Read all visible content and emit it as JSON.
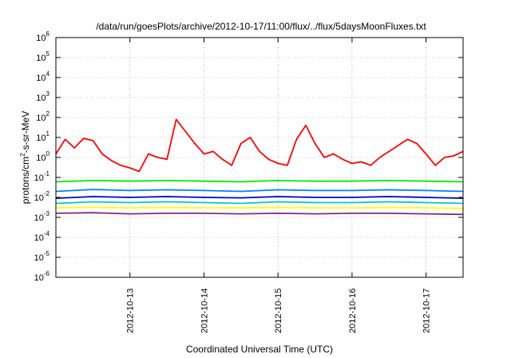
{
  "chart_data": {
    "type": "line",
    "title": "/data/run/goesPlots/archive/2012-10-17/11:00/flux/../flux/5daysMoonFluxes.txt",
    "xlabel": "Coordinated Universal Time (UTC)",
    "ylabel": {
      "base": "protons/cm",
      "sup": "2",
      "rest": "-s-sr-MeV"
    },
    "yscale": "log",
    "ylim": [
      1e-06,
      1000000.0
    ],
    "xlim": [
      "2012-10-12T00:00",
      "2012-10-17T12:00"
    ],
    "grid": true,
    "x_ticks": [
      "2012-10-13",
      "2012-10-14",
      "2012-10-15",
      "2012-10-16",
      "2012-10-17"
    ],
    "y_ticks": [
      {
        "base": "10",
        "exp": "-6"
      },
      {
        "base": "10",
        "exp": "-5"
      },
      {
        "base": "10",
        "exp": "-4"
      },
      {
        "base": "10",
        "exp": "-3"
      },
      {
        "base": "10",
        "exp": "-2"
      },
      {
        "base": "10",
        "exp": "-1"
      },
      {
        "base": "10",
        "exp": "0"
      },
      {
        "base": "10",
        "exp": "1"
      },
      {
        "base": "10",
        "exp": "2"
      },
      {
        "base": "10",
        "exp": "3"
      },
      {
        "base": "10",
        "exp": "4"
      },
      {
        "base": "10",
        "exp": "5"
      },
      {
        "base": "10",
        "exp": "6"
      }
    ],
    "series": [
      {
        "color": "#7f2a7f",
        "x": [
          "2012-10-12T00:00",
          "2012-10-12T12:00",
          "2012-10-13T00:00",
          "2012-10-13T12:00",
          "2012-10-14T00:00",
          "2012-10-14T12:00",
          "2012-10-15T00:00",
          "2012-10-15T12:00",
          "2012-10-16T00:00",
          "2012-10-16T12:00",
          "2012-10-17T00:00",
          "2012-10-17T12:00"
        ],
        "values": [
          0.0016,
          0.0017,
          0.0015,
          0.0016,
          0.0016,
          0.0015,
          0.0016,
          0.0015,
          0.0016,
          0.0016,
          0.0015,
          0.0014
        ]
      },
      {
        "color": "#ffff00",
        "x": [
          "2012-10-12T00:00",
          "2012-10-12T12:00",
          "2012-10-13T00:00",
          "2012-10-13T12:00",
          "2012-10-14T00:00",
          "2012-10-14T12:00",
          "2012-10-15T00:00",
          "2012-10-15T12:00",
          "2012-10-16T00:00",
          "2012-10-16T12:00",
          "2012-10-17T00:00",
          "2012-10-17T12:00"
        ],
        "values": [
          0.003,
          0.0032,
          0.003,
          0.0031,
          0.003,
          0.003,
          0.0031,
          0.003,
          0.003,
          0.0031,
          0.003,
          0.0028
        ]
      },
      {
        "color": "#00c8c8",
        "x": [
          "2012-10-12T00:00",
          "2012-10-12T12:00",
          "2012-10-13T00:00",
          "2012-10-13T12:00",
          "2012-10-14T00:00",
          "2012-10-14T12:00",
          "2012-10-15T00:00",
          "2012-10-15T12:00",
          "2012-10-16T00:00",
          "2012-10-16T12:00",
          "2012-10-17T00:00",
          "2012-10-17T12:00"
        ],
        "values": [
          0.005,
          0.006,
          0.0055,
          0.006,
          0.0055,
          0.005,
          0.006,
          0.0055,
          0.0055,
          0.006,
          0.0055,
          0.005
        ]
      },
      {
        "color": "#0000cc",
        "x": [
          "2012-10-12T00:00",
          "2012-10-12T12:00",
          "2012-10-13T00:00",
          "2012-10-13T12:00",
          "2012-10-14T00:00",
          "2012-10-14T12:00",
          "2012-10-15T00:00",
          "2012-10-15T12:00",
          "2012-10-16T00:00",
          "2012-10-16T12:00",
          "2012-10-17T00:00",
          "2012-10-17T12:00"
        ],
        "values": [
          0.009,
          0.011,
          0.01,
          0.011,
          0.01,
          0.0095,
          0.011,
          0.01,
          0.01,
          0.011,
          0.01,
          0.009
        ]
      },
      {
        "color": "#0080ff",
        "x": [
          "2012-10-12T00:00",
          "2012-10-12T12:00",
          "2012-10-13T00:00",
          "2012-10-13T12:00",
          "2012-10-14T00:00",
          "2012-10-14T12:00",
          "2012-10-15T00:00",
          "2012-10-15T12:00",
          "2012-10-16T00:00",
          "2012-10-16T12:00",
          "2012-10-17T00:00",
          "2012-10-17T12:00"
        ],
        "values": [
          0.02,
          0.025,
          0.022,
          0.024,
          0.022,
          0.02,
          0.024,
          0.022,
          0.022,
          0.024,
          0.022,
          0.02
        ]
      },
      {
        "color": "#00ee00",
        "x": [
          "2012-10-12T00:00",
          "2012-10-12T12:00",
          "2012-10-13T00:00",
          "2012-10-13T12:00",
          "2012-10-14T00:00",
          "2012-10-14T12:00",
          "2012-10-15T00:00",
          "2012-10-15T12:00",
          "2012-10-16T00:00",
          "2012-10-16T12:00",
          "2012-10-17T00:00",
          "2012-10-17T12:00"
        ],
        "values": [
          0.06,
          0.07,
          0.065,
          0.07,
          0.065,
          0.06,
          0.07,
          0.065,
          0.065,
          0.07,
          0.065,
          0.06
        ]
      },
      {
        "color": "#ff0000",
        "x": [
          "2012-10-12T00:00",
          "2012-10-12T03:00",
          "2012-10-12T06:00",
          "2012-10-12T09:00",
          "2012-10-12T12:00",
          "2012-10-12T15:00",
          "2012-10-12T18:00",
          "2012-10-12T21:00",
          "2012-10-13T00:00",
          "2012-10-13T03:00",
          "2012-10-13T06:00",
          "2012-10-13T09:00",
          "2012-10-13T12:00",
          "2012-10-13T15:00",
          "2012-10-13T18:00",
          "2012-10-13T21:00",
          "2012-10-14T00:00",
          "2012-10-14T03:00",
          "2012-10-14T06:00",
          "2012-10-14T09:00",
          "2012-10-14T12:00",
          "2012-10-14T15:00",
          "2012-10-14T18:00",
          "2012-10-14T21:00",
          "2012-10-15T00:00",
          "2012-10-15T03:00",
          "2012-10-15T06:00",
          "2012-10-15T09:00",
          "2012-10-15T12:00",
          "2012-10-15T15:00",
          "2012-10-15T18:00",
          "2012-10-15T21:00",
          "2012-10-16T00:00",
          "2012-10-16T03:00",
          "2012-10-16T06:00",
          "2012-10-16T09:00",
          "2012-10-16T12:00",
          "2012-10-16T15:00",
          "2012-10-16T18:00",
          "2012-10-16T21:00",
          "2012-10-17T00:00",
          "2012-10-17T03:00",
          "2012-10-17T06:00",
          "2012-10-17T09:00",
          "2012-10-17T12:00"
        ],
        "values": [
          1.5,
          8,
          3,
          9,
          7,
          1.5,
          0.7,
          0.4,
          0.3,
          0.2,
          1.5,
          1,
          0.8,
          80,
          20,
          5,
          1.5,
          2,
          0.8,
          0.4,
          5,
          10,
          2,
          0.8,
          0.5,
          0.4,
          8,
          40,
          5,
          1,
          1.5,
          0.8,
          0.5,
          0.6,
          0.4,
          1,
          2,
          4,
          8,
          5,
          1.5,
          0.4,
          1,
          1.2,
          2
        ]
      }
    ]
  }
}
